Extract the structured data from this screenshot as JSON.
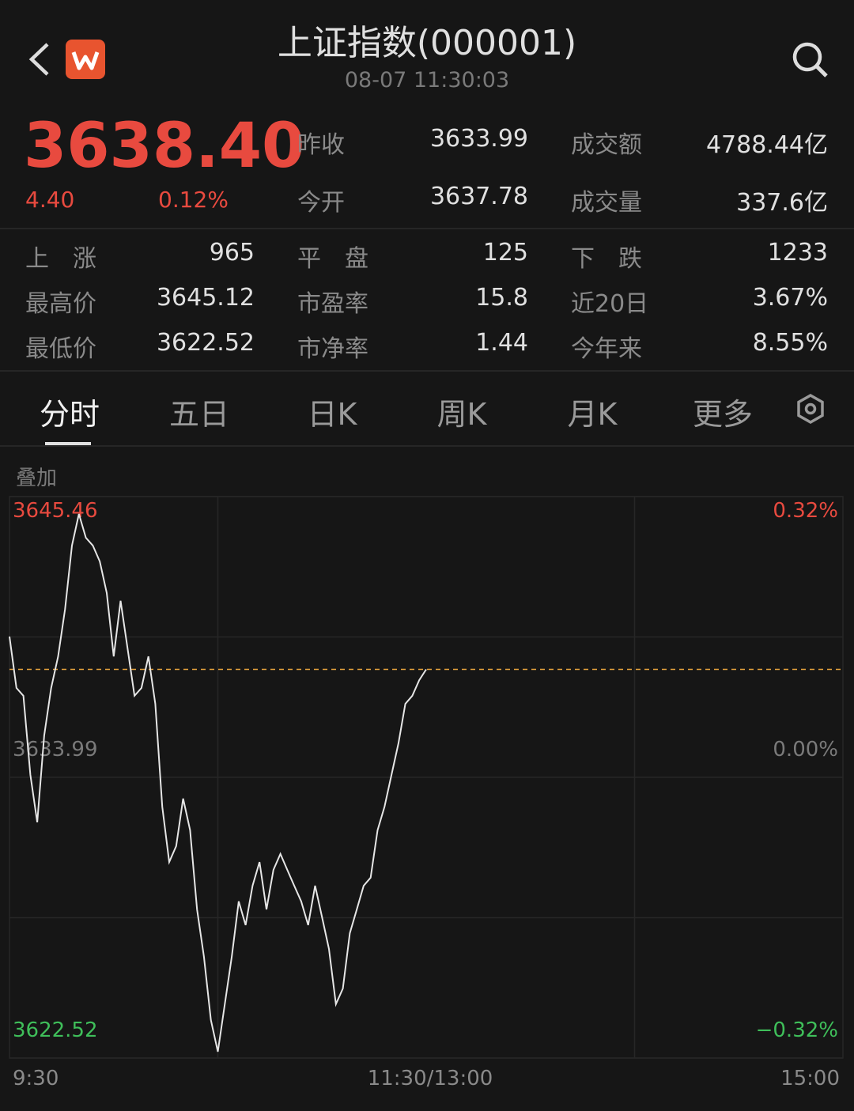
{
  "header": {
    "title": "上证指数(000001)",
    "time": "08-07 11:30:03"
  },
  "quote": {
    "price": "3638.40",
    "change": "4.40",
    "change_pct": "0.12%",
    "summary": [
      [
        {
          "label": "昨收",
          "value": "3633.99"
        },
        {
          "label": "成交额",
          "value": "4788.44亿"
        }
      ],
      [
        {
          "label": "今开",
          "value": "3637.78"
        },
        {
          "label": "成交量",
          "value": "337.6亿"
        }
      ]
    ],
    "breadth": [
      [
        {
          "label": "上　涨",
          "value": "965"
        },
        {
          "label": "平　盘",
          "value": "125"
        },
        {
          "label": "下　跌",
          "value": "1233"
        }
      ],
      [
        {
          "label": "最高价",
          "value": "3645.12"
        },
        {
          "label": "市盈率",
          "value": "15.8"
        },
        {
          "label": "近20日",
          "value": "3.67%"
        }
      ],
      [
        {
          "label": "最低价",
          "value": "3622.52"
        },
        {
          "label": "市净率",
          "value": "1.44"
        },
        {
          "label": "今年来",
          "value": "8.55%"
        }
      ]
    ]
  },
  "tabs": [
    "分时",
    "五日",
    "日K",
    "周K",
    "月K",
    "更多"
  ],
  "overlay": "叠加",
  "chart_data": {
    "type": "line",
    "color": "#e6e6e6",
    "x": [
      0,
      2,
      4,
      6,
      8,
      10,
      12,
      14,
      16,
      18,
      20,
      22,
      24,
      26,
      28,
      30,
      32,
      34,
      36,
      38,
      40,
      42,
      44,
      46,
      48,
      50,
      52,
      54,
      56,
      58,
      60,
      62,
      64,
      66,
      68,
      70,
      72,
      74,
      76,
      78,
      80,
      82,
      84,
      86,
      88,
      90,
      92,
      94,
      96,
      98,
      100,
      102,
      104,
      106,
      108,
      110,
      112,
      114,
      116,
      118,
      120
    ],
    "values": [
      3639.74,
      3637.64,
      3637.32,
      3634.09,
      3632.15,
      3635.7,
      3637.64,
      3638.93,
      3640.87,
      3643.46,
      3644.75,
      3643.78,
      3643.46,
      3642.81,
      3641.52,
      3638.93,
      3641.2,
      3639.26,
      3637.32,
      3637.64,
      3638.93,
      3636.99,
      3632.79,
      3630.53,
      3631.18,
      3633.12,
      3631.83,
      3628.59,
      3626.66,
      3624.07,
      3622.78,
      3624.72,
      3626.66,
      3628.92,
      3627.95,
      3629.56,
      3630.53,
      3628.59,
      3630.21,
      3630.86,
      3630.21,
      3629.56,
      3628.92,
      3627.95,
      3629.56,
      3628.27,
      3626.98,
      3624.72,
      3625.36,
      3627.62,
      3628.59,
      3629.56,
      3629.89,
      3631.83,
      3632.79,
      3634.09,
      3635.38,
      3636.99,
      3637.32,
      3637.96,
      3638.4
    ],
    "xlim": [
      0,
      240
    ],
    "xticks": [
      {
        "value": 0,
        "label": "9:30"
      },
      {
        "value": 120,
        "label": "11:30/13:00"
      },
      {
        "value": 240,
        "label": "15:00"
      }
    ],
    "ylim": [
      3622.52,
      3645.46
    ],
    "yticks": [
      3645.46,
      3633.99,
      3622.52
    ],
    "y2lim": [
      -0.32,
      0.32
    ],
    "y2ticks": [
      {
        "value": 0.32,
        "label": "0.32%"
      },
      {
        "value": 0,
        "label": "0.00%"
      },
      {
        "value": -0.32,
        "label": "−0.32%"
      }
    ],
    "grid": true
  }
}
